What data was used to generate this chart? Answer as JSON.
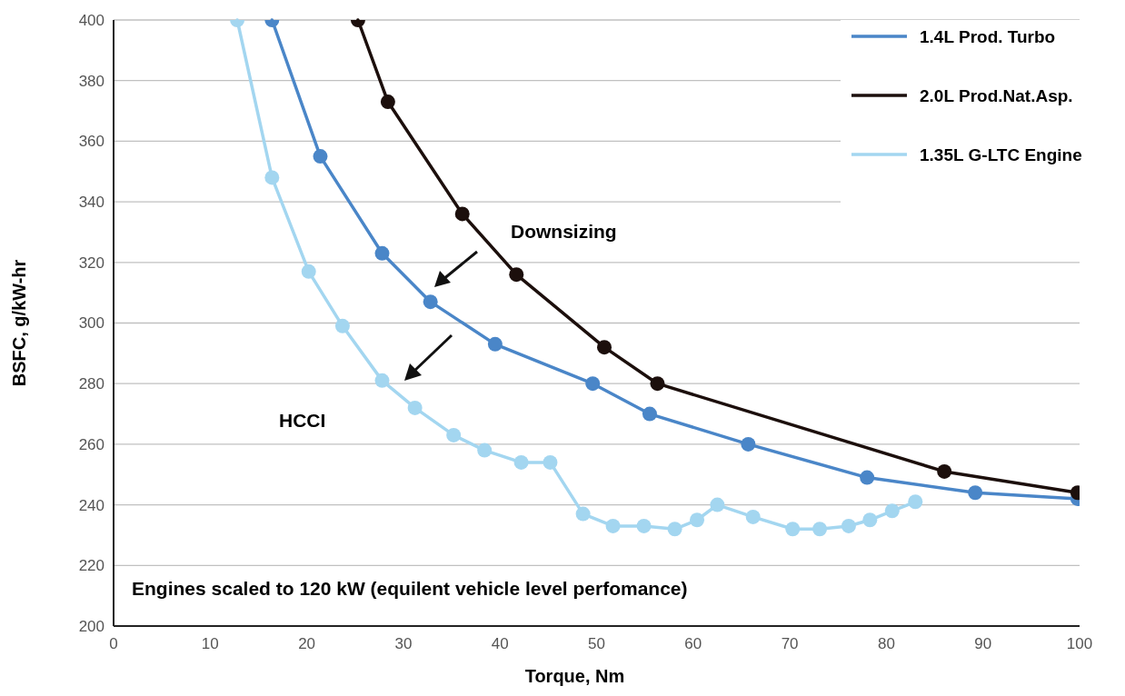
{
  "chart_data": {
    "type": "line",
    "xlabel": "Torque, Nm",
    "ylabel": "BSFC, g/kW-hr",
    "xlim": [
      0,
      100
    ],
    "ylim": [
      200,
      400
    ],
    "xticks": [
      0,
      10,
      20,
      30,
      40,
      50,
      60,
      70,
      80,
      90,
      100
    ],
    "yticks": [
      200,
      220,
      240,
      260,
      280,
      300,
      320,
      340,
      360,
      380,
      400
    ],
    "grid": "y",
    "legend": "top right",
    "marker": "circle",
    "line_style": "solid",
    "annotations": [
      "Downsizing",
      "HCCI",
      "Engines scaled to 120 kW (equilent vehicle level perfomance)"
    ],
    "series": [
      {
        "name": "1.4L Prod. Turbo",
        "color": "#4a86c8",
        "x": [
          16.4,
          21.4,
          27.8,
          32.8,
          39.5,
          49.6,
          55.5,
          65.7,
          78.0,
          89.2,
          99.8
        ],
        "values": [
          400,
          355,
          323,
          307,
          293,
          280,
          270,
          260,
          249,
          244,
          242
        ]
      },
      {
        "name": "2.0L Prod.Nat.Asp.",
        "color": "#1c0f0c",
        "x": [
          25.3,
          28.4,
          36.1,
          41.7,
          50.8,
          56.3,
          86.0,
          99.8
        ],
        "values": [
          400,
          373,
          336,
          316,
          292,
          280,
          251,
          244
        ]
      },
      {
        "name": "1.35L G-LTC Engine",
        "color": "#a3d6f0",
        "x": [
          12.8,
          16.4,
          20.2,
          23.7,
          27.8,
          31.2,
          35.2,
          38.4,
          42.2,
          45.2,
          48.6,
          51.7,
          54.9,
          58.1,
          60.4,
          62.5,
          66.2,
          70.3,
          73.1,
          76.1,
          78.3,
          80.6,
          83.0
        ],
        "values": [
          400,
          348,
          317,
          299,
          281,
          272,
          263,
          258,
          254,
          254,
          237,
          233,
          233,
          232,
          235,
          240,
          236,
          232,
          232,
          233,
          235,
          238,
          241
        ]
      }
    ]
  }
}
